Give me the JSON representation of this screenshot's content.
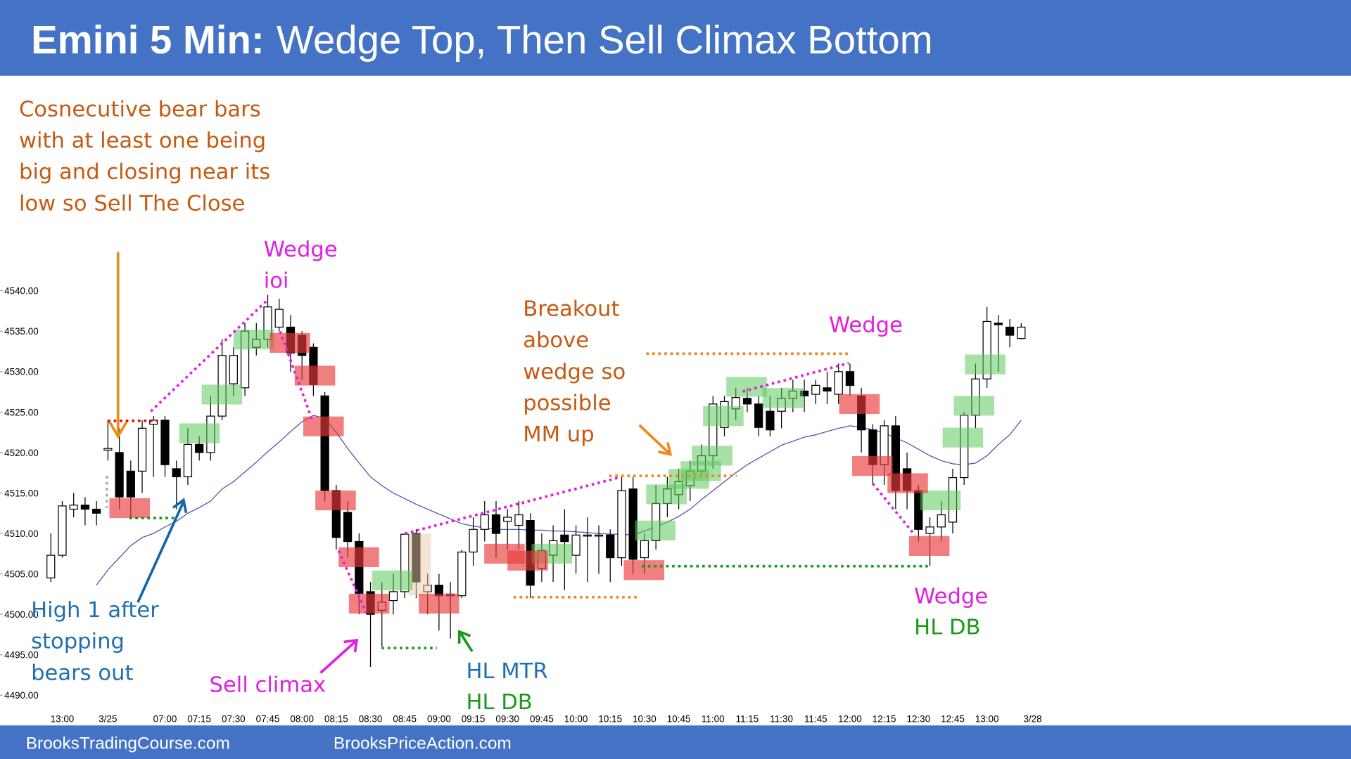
{
  "chart_data": {
    "type": "candlestick",
    "title_prefix": "Emini 5 Min:",
    "title": "Wedge Top, Then Sell Climax Bottom",
    "footer": [
      "BrooksTradingCourse.com",
      "BrooksPriceAction.com"
    ],
    "up_color": "#ffffff",
    "down_color": "#000000",
    "ema_color": "#4a4ab0",
    "ylim": [
      4488.5,
      4565.3
    ],
    "yticks": [
      {
        "value": 4490,
        "label": "4490.00"
      },
      {
        "value": 4495,
        "label": "4495.00"
      },
      {
        "value": 4500,
        "label": "4500.00"
      },
      {
        "value": 4505,
        "label": "4505.00"
      },
      {
        "value": 4510,
        "label": "4510.00"
      },
      {
        "value": 4515,
        "label": "4515.00"
      },
      {
        "value": 4520,
        "label": "4520.00"
      },
      {
        "value": 4525,
        "label": "4525.00"
      },
      {
        "value": 4530,
        "label": "4530.00"
      },
      {
        "value": 4535,
        "label": "4535.00"
      },
      {
        "value": 4540,
        "label": "4540.00"
      }
    ],
    "categories": [
      null,
      "13:00",
      null,
      null,
      null,
      "3/25",
      null,
      null,
      null,
      null,
      "07:00",
      null,
      null,
      "07:15",
      null,
      null,
      "07:30",
      null,
      null,
      "07:45",
      null,
      null,
      "08:00",
      null,
      null,
      "08:15",
      null,
      null,
      "08:30",
      null,
      null,
      "08:45",
      null,
      null,
      "09:00",
      null,
      null,
      "09:15",
      null,
      null,
      "09:30",
      null,
      null,
      "09:45",
      null,
      null,
      "10:00",
      null,
      null,
      "10:15",
      null,
      null,
      "10:30",
      null,
      null,
      "10:45",
      null,
      null,
      "11:00",
      null,
      null,
      "11:15",
      null,
      null,
      "11:30",
      null,
      null,
      "11:45",
      null,
      null,
      "12:00",
      null,
      null,
      "12:15",
      null,
      null,
      "12:30",
      null,
      null,
      "12:45",
      null,
      null,
      "13:00",
      null,
      null,
      null,
      "3/28"
    ],
    "open": [
      4504.5,
      4507.3,
      4513,
      4513.5,
      4513,
      4520.3,
      4520,
      4517.7,
      4517.7,
      4523.5,
      4524,
      4518,
      4517,
      4521,
      4520,
      4524.5,
      4528.5,
      4528,
      4533,
      4534,
      4535.5,
      4535.5,
      4534.5,
      4533,
      4527,
      4515.3,
      4512.6,
      4509,
      4502.8,
      4500.5,
      4501.7,
      4502.8,
      4510,
      4502.8,
      4503.6,
      4502.3,
      4502.3,
      4507.7,
      4510.5,
      4512.3,
      4511.5,
      4511,
      4511.6,
      4505.7,
      4507.3,
      4509.8,
      4507.3,
      4509.8,
      4509.8,
      4509.8,
      4507,
      4515.5,
      4507,
      4509.1,
      4513.7,
      4514.8,
      4515.9,
      4517.7,
      4519.6,
      4523.1,
      4525.4,
      4526.7,
      4526,
      4525.1,
      4525.1,
      4526.7,
      4527.6,
      4527.2,
      4528,
      4527.2,
      4530,
      4527,
      4522.8,
      4518.5,
      4523.3,
      4518,
      4515.3,
      4510,
      4510.8,
      4511.4,
      4516.9,
      4524.6,
      4529.1,
      4536,
      4535.5,
      4534.1,
      null
    ],
    "high": [
      4510,
      4514,
      4515,
      4514.5,
      4514,
      4524,
      4523,
      4519,
      4524,
      4524.5,
      4524.5,
      4519,
      4523,
      4522,
      4527,
      4534,
      4533,
      4536,
      4536,
      4539.5,
      4539,
      4537,
      4535,
      4533.5,
      4527.5,
      4516,
      4514,
      4510,
      4504,
      4504,
      4505,
      4510,
      4510.5,
      4505,
      4505,
      4504,
      4508,
      4512,
      4514,
      4514,
      4513,
      4514,
      4512.5,
      4510,
      4511,
      4513,
      4511,
      4512,
      4511,
      4510.5,
      4517,
      4517,
      4510,
      4516,
      4517,
      4518,
      4519,
      4521,
      4527,
      4527,
      4528,
      4528,
      4527,
      4527,
      4528,
      4529,
      4529,
      4529,
      4530,
      4531,
      4531,
      4528,
      4523.5,
      4524,
      4524.5,
      4520,
      4516,
      4512,
      4514,
      4518,
      4525,
      4531,
      4538,
      4537,
      4536.5,
      4536,
      null
    ],
    "low": [
      4504,
      4507,
      4512,
      4511,
      4511,
      4519,
      4513,
      4512,
      4515,
      4517,
      4517,
      4513,
      4516,
      4519,
      4519,
      4524,
      4527,
      4527,
      4532,
      4533,
      4535,
      4530,
      4529,
      4527,
      4514,
      4508,
      4507,
      4500,
      4493.5,
      4496,
      4500,
      4502,
      4502,
      4500,
      4498,
      4497,
      4502,
      4506,
      4509,
      4507,
      4508,
      4508,
      4502,
      4504,
      4504,
      4503,
      4505,
      4504,
      4505,
      4504,
      4506,
      4505,
      4505,
      4508,
      4512,
      4513,
      4514,
      4517,
      4518,
      4522,
      4524,
      4525,
      4522,
      4522,
      4523,
      4525,
      4525,
      4526,
      4526,
      4526,
      4527,
      4520,
      4516,
      4516,
      4513,
      4513,
      4509,
      4506,
      4509,
      4510,
      4516,
      4523,
      4528,
      4530,
      4533,
      4534,
      null
    ],
    "close": [
      4507.3,
      4513.4,
      4513.5,
      4513,
      4512.5,
      4520.5,
      4514.5,
      4514.5,
      4523,
      4524,
      4518.5,
      4517,
      4521,
      4520,
      4524.5,
      4532,
      4532,
      4535,
      4534,
      4538,
      4537.7,
      4532.3,
      4532,
      4528.4,
      4515.3,
      4509.5,
      4509,
      4502.6,
      4500,
      4501.5,
      4502.8,
      4509.9,
      4504,
      4503.6,
      4502.3,
      4502.5,
      4507.7,
      4510.5,
      4512.3,
      4510,
      4512,
      4512.3,
      4503.6,
      4507.9,
      4509.1,
      4509,
      4509.8,
      4509.8,
      4509.8,
      4507,
      4515.3,
      4506.8,
      4509.1,
      4513.7,
      4515.5,
      4516.4,
      4517.7,
      4519.6,
      4526,
      4526.3,
      4526.8,
      4526,
      4523.1,
      4522.8,
      4526.7,
      4527.6,
      4527,
      4528.3,
      4527.6,
      4530,
      4528.3,
      4522.8,
      4518.5,
      4523.3,
      4515.3,
      4515.3,
      4510.5,
      4510.8,
      4512.3,
      4516.9,
      4524.6,
      4529.1,
      4536.2,
      4535.8,
      4534.5,
      4535.5,
      null
    ],
    "ema": [
      null,
      null,
      null,
      null,
      4503.6,
      4505.5,
      4507,
      4508.5,
      4509.5,
      4510,
      4510.8,
      4511.5,
      4512.5,
      4513.2,
      4514,
      4515.5,
      4516.4,
      4517.6,
      4518.8,
      4520.1,
      4521.3,
      4522.6,
      4523.8,
      4524.6,
      4524.2,
      4522.5,
      4520.5,
      4518.7,
      4517,
      4515.9,
      4515,
      4514.3,
      4513.6,
      4513,
      4512.4,
      4511.8,
      4511.2,
      4510.9,
      4510.7,
      4510.5,
      4510.5,
      4510.5,
      4510.4,
      4510.4,
      4510.3,
      4510.3,
      4510.2,
      4510.1,
      4510,
      4509.9,
      4509.9,
      4509.8,
      4510.3,
      4510.8,
      4511.4,
      4512.1,
      4513,
      4514.2,
      4515.3,
      4516.4,
      4517.5,
      4518.5,
      4519.3,
      4520.1,
      4520.9,
      4521.4,
      4521.9,
      4522.2,
      4522.6,
      4523,
      4523.3,
      4523.1,
      4522.8,
      4522.4,
      4521.8,
      4521.2,
      4520.4,
      4519.6,
      4519,
      4518.6,
      4518.5,
      4518.7,
      4519.6,
      4521,
      4522.2,
      4524,
      null
    ],
    "annotations": [
      {
        "lines": [
          "Cosnecutive bear bars",
          "with at least one being",
          "big and closing near its",
          "low so Sell The Close"
        ],
        "color": "#c55a11"
      },
      {
        "lines": [
          "Wedge",
          "ioi"
        ],
        "color": "#e020e0"
      },
      {
        "lines": [
          "Breakout",
          "above",
          "wedge so",
          "possible",
          "MM up"
        ],
        "color": "#c55a11"
      },
      {
        "lines": [
          "Wedge"
        ],
        "color": "#e020e0"
      },
      {
        "lines": [
          "High 1 after",
          "stopping",
          "bears out"
        ],
        "color": "#1f6fb0"
      },
      {
        "lines": [
          "Sell climax"
        ],
        "color": "#e020e0"
      },
      {
        "lines": [
          "HL MTR"
        ],
        "color": "#1f6fb0"
      },
      {
        "lines": [
          "HL DB"
        ],
        "color": "#1a9a1a"
      },
      {
        "lines": [
          "Wedge"
        ],
        "color": "#e020e0"
      },
      {
        "lines": [
          "HL DB"
        ],
        "color": "#1a9a1a"
      }
    ]
  }
}
